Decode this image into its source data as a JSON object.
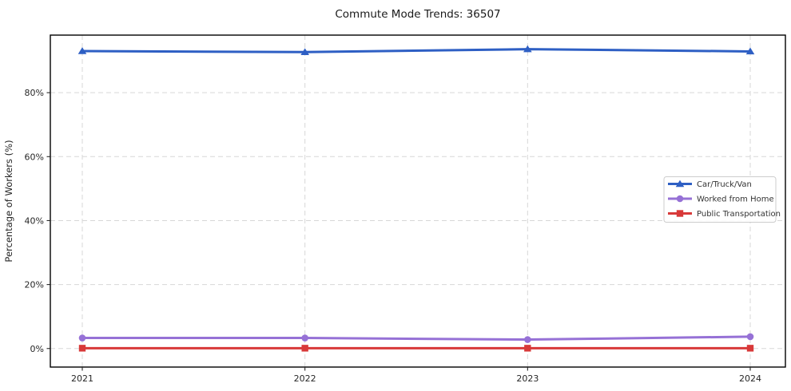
{
  "chart_data": {
    "type": "line",
    "title": "Commute Mode Trends: 36507",
    "xlabel": "",
    "ylabel": "Percentage of Workers (%)",
    "x": [
      2021,
      2022,
      2023,
      2024
    ],
    "x_tick_labels": [
      "2021",
      "2022",
      "2023",
      "2024"
    ],
    "y_ticks": [
      0,
      20,
      40,
      60,
      80
    ],
    "y_tick_labels": [
      "0%",
      "20%",
      "40%",
      "60%",
      "80%"
    ],
    "ylim": [
      -5.8,
      98.0
    ],
    "grid": true,
    "grid_style": "dashed",
    "legend_position": "center-right",
    "series": [
      {
        "name": "Car/Truck/Van",
        "marker": "triangle",
        "color": "#2e5fc4",
        "values": [
          93.0,
          92.7,
          93.6,
          92.9
        ]
      },
      {
        "name": "Worked from Home",
        "marker": "circle",
        "color": "#9671d6",
        "values": [
          3.3,
          3.3,
          2.8,
          3.7
        ]
      },
      {
        "name": "Public Transportation",
        "marker": "square",
        "color": "#d83939",
        "values": [
          0.1,
          0.1,
          0.1,
          0.1
        ]
      }
    ],
    "colors": {
      "grid": "#d7d7d7",
      "spine": "#000000",
      "tick_text": "#262626",
      "title_text": "#1a1a1a",
      "legend_border": "#cccccc"
    }
  }
}
